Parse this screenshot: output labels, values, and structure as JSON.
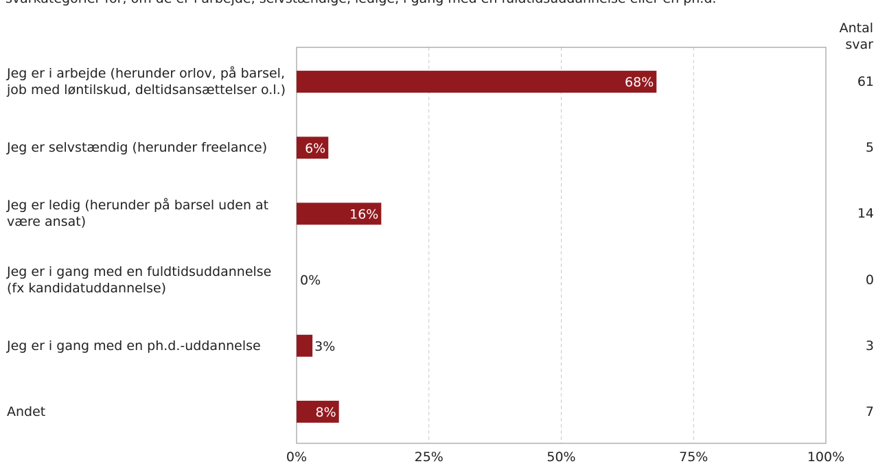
{
  "subtitle": "svarkategorier for, om de er i arbejde, selvstændige, ledige, i gang med en fuldtidsuddannelse eller en ph.d.",
  "count_header": "Antal svar",
  "colors": {
    "bar": "#921a1f",
    "axis": "#888888",
    "grid": "#c8c8c8"
  },
  "chart_data": {
    "type": "bar",
    "orientation": "horizontal",
    "categories": [
      "Jeg er i arbejde (herunder orlov, på barsel, job med løntilskud, deltidsansættelser o.l.)",
      "Jeg er selvstændig (herunder freelance)",
      "Jeg er ledig (herunder på barsel uden at være ansat)",
      "Jeg er i gang med en fuldtidsuddannelse (fx kandidatuddannelse)",
      "Jeg er i gang med en ph.d.-uddannelse",
      "Andet"
    ],
    "values": [
      68,
      6,
      16,
      0,
      3,
      8
    ],
    "value_labels": [
      "68%",
      "6%",
      "16%",
      "0%",
      "3%",
      "8%"
    ],
    "counts": [
      "61",
      "5",
      "14",
      "0",
      "3",
      "7"
    ],
    "x_ticks": [
      "0%",
      "25%",
      "50%",
      "75%",
      "100%"
    ],
    "xlim": [
      0,
      100
    ],
    "grid": true
  }
}
